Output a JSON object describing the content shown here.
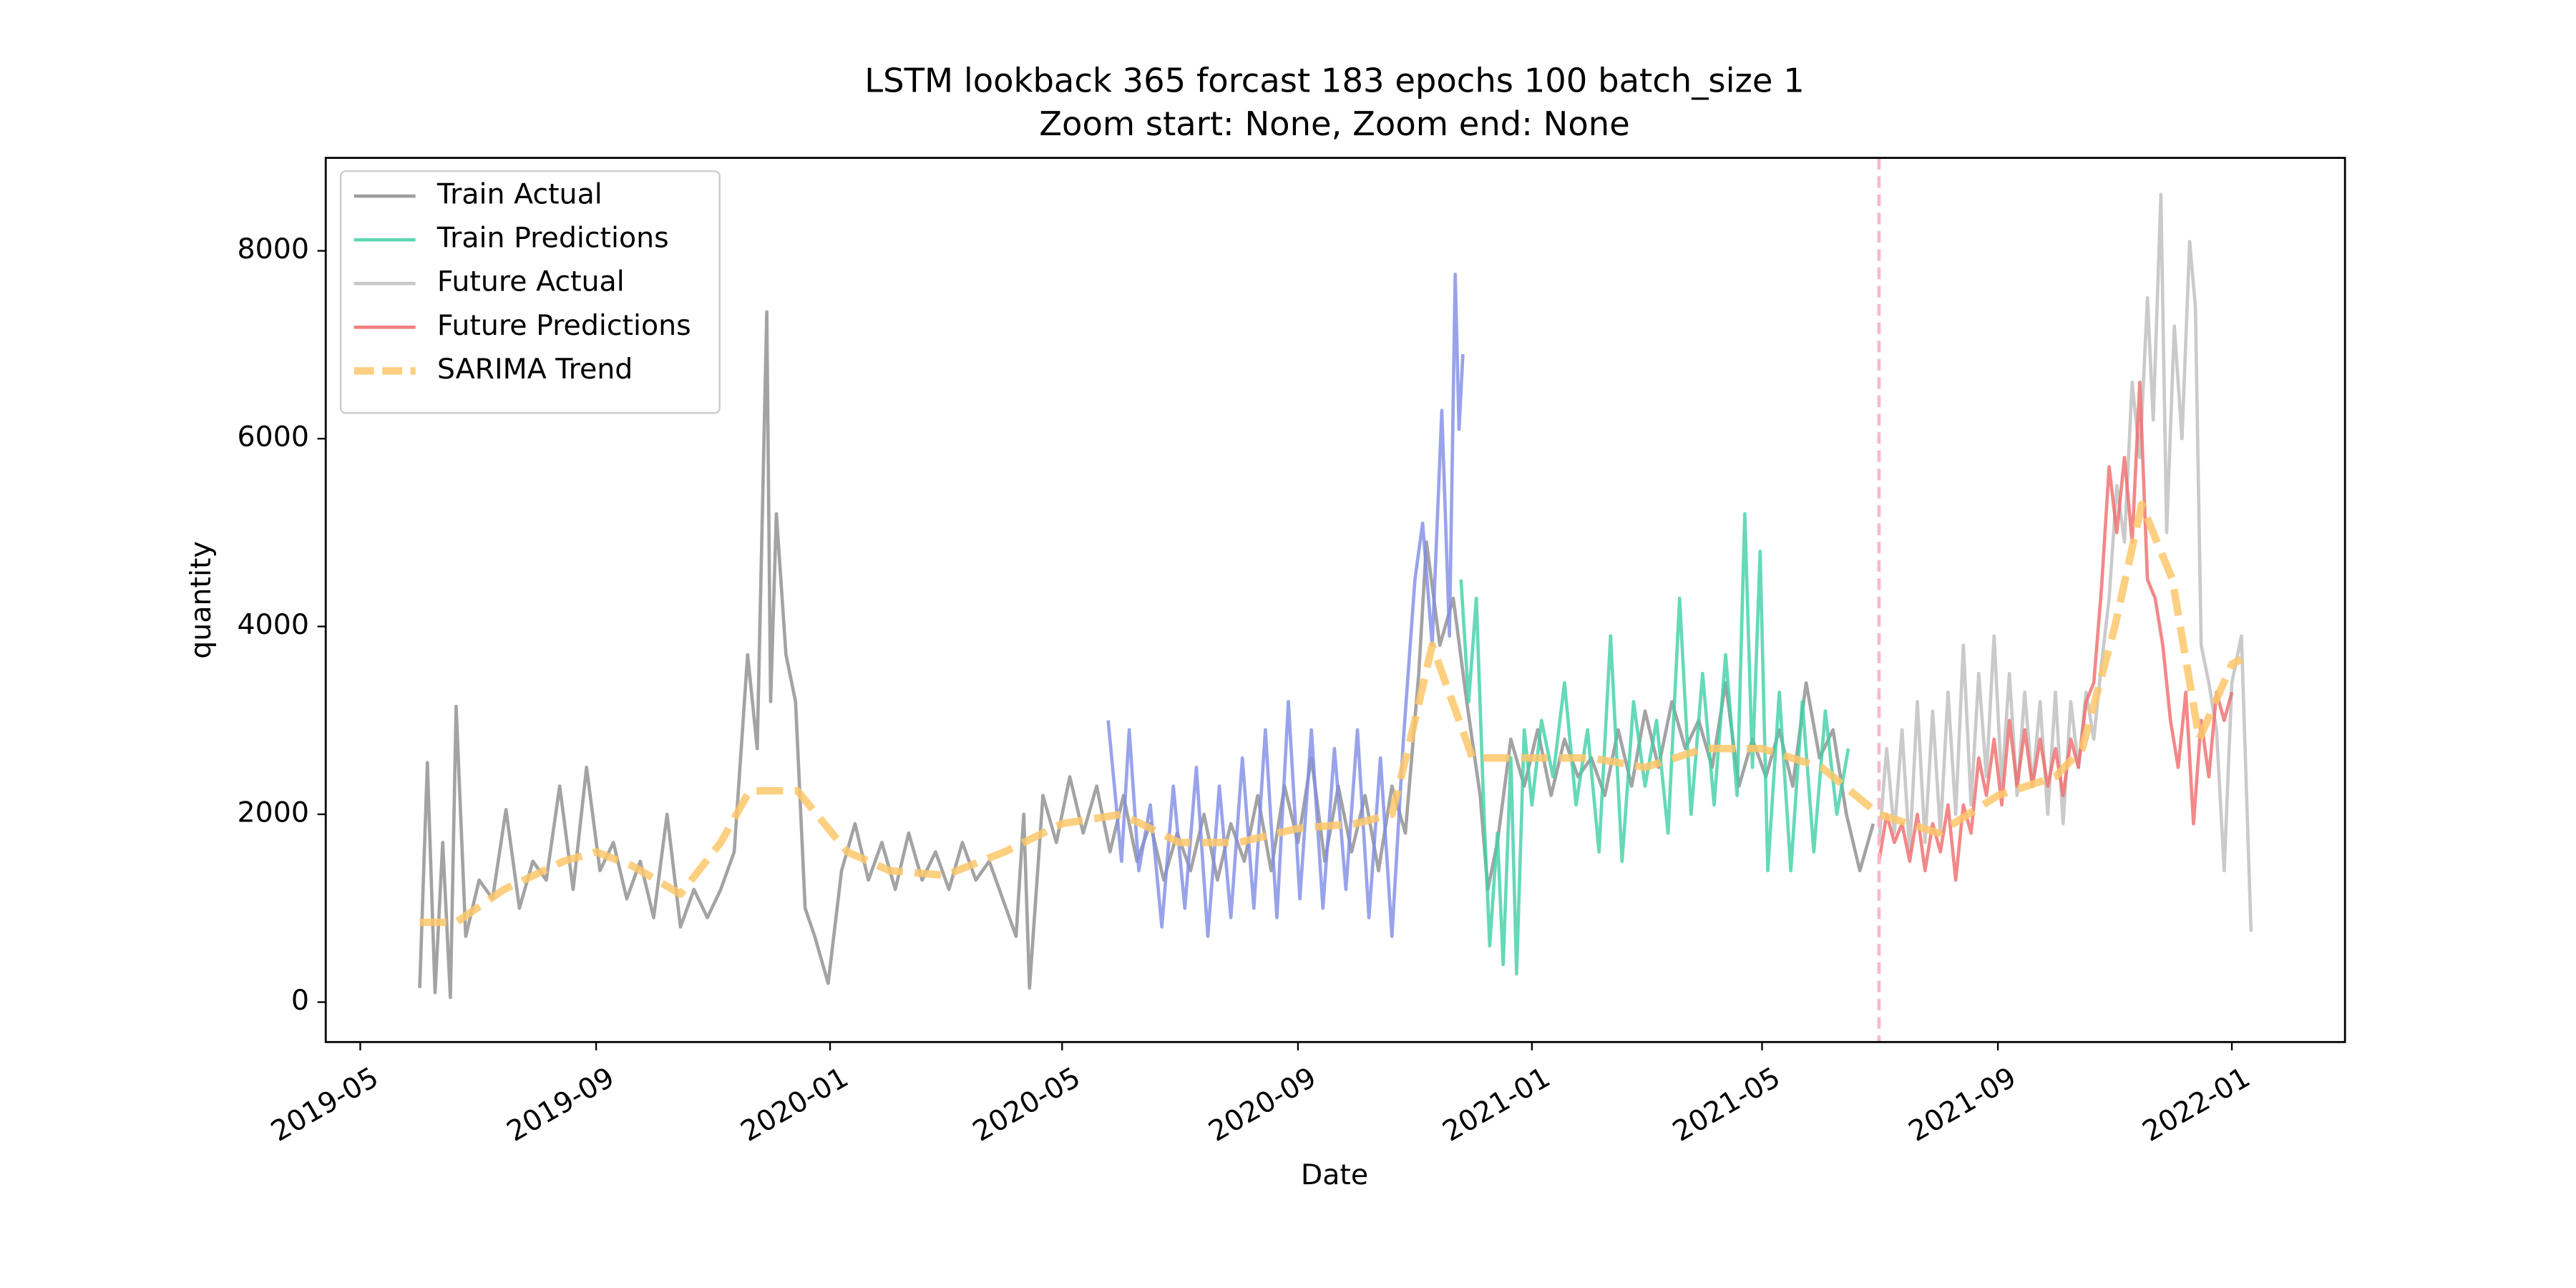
{
  "chart_data": {
    "type": "line",
    "title": "LSTM lookback 365 forcast 183 epochs 100 batch_size 1",
    "subtitle": "Zoom start: None, Zoom end: None",
    "xlabel": "Date",
    "ylabel": "quantity",
    "xlim": [
      "2019-04-13",
      "2022-03-01"
    ],
    "xticks": [
      {
        "value": "2019-05-01",
        "label": "2019-05"
      },
      {
        "value": "2019-09-01",
        "label": "2019-09"
      },
      {
        "value": "2020-01-01",
        "label": "2020-01"
      },
      {
        "value": "2020-05-01",
        "label": "2020-05"
      },
      {
        "value": "2020-09-01",
        "label": "2020-09"
      },
      {
        "value": "2021-01-01",
        "label": "2021-01"
      },
      {
        "value": "2021-05-01",
        "label": "2021-05"
      },
      {
        "value": "2021-09-01",
        "label": "2021-09"
      },
      {
        "value": "2022-01-01",
        "label": "2022-01"
      }
    ],
    "ylim": [
      -425,
      8990
    ],
    "yticks": [
      0,
      2000,
      4000,
      6000,
      8000
    ],
    "grid": false,
    "legend": "upper left",
    "vline": "2021-07-01",
    "vline_color": "#ffb6c8",
    "series": [
      {
        "name": "Train Actual",
        "color": "#8c8c8c",
        "dashed": false,
        "x": [
          "2019-06-01",
          "2019-06-05",
          "2019-06-09",
          "2019-06-13",
          "2019-06-17",
          "2019-06-20",
          "2019-06-25",
          "2019-07-02",
          "2019-07-09",
          "2019-07-16",
          "2019-07-23",
          "2019-07-30",
          "2019-08-06",
          "2019-08-13",
          "2019-08-20",
          "2019-08-27",
          "2019-09-03",
          "2019-09-10",
          "2019-09-17",
          "2019-09-24",
          "2019-10-01",
          "2019-10-08",
          "2019-10-15",
          "2019-10-22",
          "2019-10-29",
          "2019-11-05",
          "2019-11-12",
          "2019-11-19",
          "2019-11-24",
          "2019-11-29",
          "2019-12-01",
          "2019-12-04",
          "2019-12-09",
          "2019-12-14",
          "2019-12-19",
          "2019-12-24",
          "2019-12-31",
          "2020-01-07",
          "2020-01-14",
          "2020-01-21",
          "2020-01-28",
          "2020-02-04",
          "2020-02-11",
          "2020-02-18",
          "2020-02-25",
          "2020-03-03",
          "2020-03-10",
          "2020-03-17",
          "2020-03-24",
          "2020-03-31",
          "2020-04-07",
          "2020-04-11",
          "2020-04-14",
          "2020-04-21",
          "2020-04-28",
          "2020-05-05",
          "2020-05-12",
          "2020-05-19",
          "2020-05-26",
          "2020-06-02",
          "2020-06-09",
          "2020-06-16",
          "2020-06-23",
          "2020-06-30",
          "2020-07-07",
          "2020-07-14",
          "2020-07-21",
          "2020-07-28",
          "2020-08-04",
          "2020-08-11",
          "2020-08-18",
          "2020-08-25",
          "2020-09-01",
          "2020-09-08",
          "2020-09-15",
          "2020-09-22",
          "2020-09-29",
          "2020-10-06",
          "2020-10-13",
          "2020-10-20",
          "2020-10-27",
          "2020-11-03",
          "2020-11-07",
          "2020-11-14",
          "2020-11-21",
          "2020-11-28",
          "2020-12-05",
          "2020-12-09",
          "2020-12-14",
          "2020-12-21",
          "2020-12-28",
          "2021-01-04",
          "2021-01-11",
          "2021-01-18",
          "2021-01-25",
          "2021-02-01",
          "2021-02-08",
          "2021-02-15",
          "2021-02-22",
          "2021-03-01",
          "2021-03-08",
          "2021-03-15",
          "2021-03-22",
          "2021-03-29",
          "2021-04-05",
          "2021-04-12",
          "2021-04-19",
          "2021-04-26",
          "2021-05-03",
          "2021-05-10",
          "2021-05-17",
          "2021-05-24",
          "2021-05-31",
          "2021-06-07",
          "2021-06-14",
          "2021-06-21",
          "2021-06-28"
        ],
        "values": [
          150,
          2550,
          100,
          1700,
          50,
          3150,
          700,
          1300,
          1100,
          2050,
          1000,
          1500,
          1300,
          2300,
          1200,
          2500,
          1400,
          1700,
          1100,
          1500,
          900,
          2000,
          800,
          1200,
          900,
          1200,
          1600,
          3700,
          2700,
          7350,
          3200,
          5200,
          3700,
          3200,
          1000,
          700,
          200,
          1400,
          1900,
          1300,
          1700,
          1200,
          1800,
          1300,
          1600,
          1200,
          1700,
          1300,
          1500,
          1100,
          700,
          2000,
          150,
          2200,
          1700,
          2400,
          1800,
          2300,
          1600,
          2200,
          1500,
          1900,
          1300,
          1800,
          1400,
          2000,
          1300,
          1900,
          1500,
          2200,
          1400,
          2300,
          1700,
          2600,
          1500,
          2300,
          1600,
          2200,
          1400,
          2300,
          1800,
          3500,
          4900,
          3800,
          4300,
          3200,
          2200,
          1200,
          1700,
          2800,
          2300,
          2900,
          2200,
          2800,
          2400,
          2600,
          2200,
          2900,
          2300,
          3100,
          2500,
          3200,
          2700,
          3000,
          2500,
          3400,
          2300,
          2800,
          2400,
          2900,
          2300,
          3400,
          2600,
          2900,
          2000,
          1400,
          1900
        ]
      },
      {
        "color": "#7f8ce6",
        "dashed": false,
        "x": [
          "2020-05-25",
          "2020-06-01",
          "2020-06-05",
          "2020-06-10",
          "2020-06-16",
          "2020-06-22",
          "2020-06-28",
          "2020-07-04",
          "2020-07-10",
          "2020-07-16",
          "2020-07-22",
          "2020-07-28",
          "2020-08-03",
          "2020-08-09",
          "2020-08-15",
          "2020-08-21",
          "2020-08-27",
          "2020-09-02",
          "2020-09-08",
          "2020-09-14",
          "2020-09-20",
          "2020-09-26",
          "2020-10-02",
          "2020-10-08",
          "2020-10-14",
          "2020-10-20",
          "2020-10-26",
          "2020-11-01",
          "2020-11-05",
          "2020-11-10",
          "2020-11-15",
          "2020-11-19",
          "2020-11-22",
          "2020-11-24",
          "2020-11-26"
        ],
        "values": [
          3000,
          1500,
          2900,
          1400,
          2100,
          800,
          2300,
          1000,
          2500,
          700,
          2300,
          900,
          2600,
          1000,
          2900,
          900,
          3200,
          1100,
          2900,
          1000,
          2700,
          1200,
          2900,
          900,
          2600,
          700,
          2800,
          4500,
          5100,
          3800,
          6300,
          3900,
          7750,
          6100,
          6900
        ]
      },
      {
        "name": "Train Predictions",
        "color": "#3fd0a6",
        "dashed": false,
        "x": [
          "2020-11-25",
          "2020-11-29",
          "2020-12-03",
          "2020-12-07",
          "2020-12-10",
          "2020-12-14",
          "2020-12-17",
          "2020-12-21",
          "2020-12-24",
          "2020-12-28",
          "2021-01-01",
          "2021-01-06",
          "2021-01-12",
          "2021-01-18",
          "2021-01-24",
          "2021-01-30",
          "2021-02-05",
          "2021-02-11",
          "2021-02-17",
          "2021-02-23",
          "2021-03-01",
          "2021-03-07",
          "2021-03-13",
          "2021-03-19",
          "2021-03-25",
          "2021-03-31",
          "2021-04-06",
          "2021-04-12",
          "2021-04-18",
          "2021-04-22",
          "2021-04-26",
          "2021-04-30",
          "2021-05-04",
          "2021-05-10",
          "2021-05-16",
          "2021-05-22",
          "2021-05-28",
          "2021-06-03",
          "2021-06-09",
          "2021-06-15"
        ],
        "values": [
          4500,
          3200,
          4300,
          2000,
          600,
          1800,
          400,
          2600,
          300,
          2900,
          2100,
          3000,
          2400,
          3400,
          2100,
          2900,
          1600,
          3900,
          1500,
          3200,
          2300,
          3000,
          1800,
          4300,
          2000,
          3500,
          2100,
          3700,
          2200,
          5200,
          2500,
          4800,
          1400,
          3300,
          1400,
          3200,
          1600,
          3100,
          2000,
          2700
        ]
      },
      {
        "name": "Future Actual",
        "color": "#bdbdbd",
        "dashed": false,
        "x": [
          "2021-07-01",
          "2021-07-05",
          "2021-07-09",
          "2021-07-13",
          "2021-07-17",
          "2021-07-21",
          "2021-07-25",
          "2021-07-29",
          "2021-08-02",
          "2021-08-06",
          "2021-08-10",
          "2021-08-14",
          "2021-08-18",
          "2021-08-22",
          "2021-08-26",
          "2021-08-30",
          "2021-09-03",
          "2021-09-07",
          "2021-09-11",
          "2021-09-15",
          "2021-09-19",
          "2021-09-23",
          "2021-09-27",
          "2021-10-01",
          "2021-10-05",
          "2021-10-09",
          "2021-10-13",
          "2021-10-17",
          "2021-10-21",
          "2021-10-25",
          "2021-10-29",
          "2021-11-02",
          "2021-11-06",
          "2021-11-10",
          "2021-11-14",
          "2021-11-18",
          "2021-11-21",
          "2021-11-25",
          "2021-11-28",
          "2021-12-02",
          "2021-12-06",
          "2021-12-10",
          "2021-12-13",
          "2021-12-16",
          "2021-12-20",
          "2021-12-24",
          "2021-12-28",
          "2022-01-01",
          "2022-01-06",
          "2022-01-11"
        ],
        "values": [
          1700,
          2700,
          1800,
          2900,
          1600,
          3200,
          1700,
          3100,
          1800,
          3300,
          2000,
          3800,
          2100,
          3500,
          2400,
          3900,
          2300,
          3500,
          2200,
          3300,
          2300,
          3200,
          2000,
          3300,
          1900,
          3200,
          2500,
          3300,
          2800,
          3600,
          4300,
          5500,
          4900,
          6600,
          5800,
          7500,
          6200,
          8600,
          5000,
          7200,
          6000,
          8100,
          7400,
          3800,
          3400,
          2900,
          1400,
          3400,
          3900,
          750
        ]
      },
      {
        "name": "Future Predictions",
        "color": "#f06a6a",
        "dashed": false,
        "x": [
          "2021-07-01",
          "2021-07-05",
          "2021-07-09",
          "2021-07-13",
          "2021-07-17",
          "2021-07-21",
          "2021-07-25",
          "2021-07-29",
          "2021-08-02",
          "2021-08-06",
          "2021-08-10",
          "2021-08-14",
          "2021-08-18",
          "2021-08-22",
          "2021-08-26",
          "2021-08-30",
          "2021-09-03",
          "2021-09-07",
          "2021-09-11",
          "2021-09-15",
          "2021-09-19",
          "2021-09-23",
          "2021-09-27",
          "2021-10-01",
          "2021-10-05",
          "2021-10-09",
          "2021-10-13",
          "2021-10-17",
          "2021-10-21",
          "2021-10-25",
          "2021-10-29",
          "2021-11-02",
          "2021-11-06",
          "2021-11-10",
          "2021-11-14",
          "2021-11-18",
          "2021-11-22",
          "2021-11-26",
          "2021-11-30",
          "2021-12-04",
          "2021-12-08",
          "2021-12-12",
          "2021-12-16",
          "2021-12-20",
          "2021-12-24",
          "2021-12-28",
          "2022-01-01"
        ],
        "values": [
          1500,
          2000,
          1700,
          1900,
          1500,
          2000,
          1400,
          1900,
          1600,
          2100,
          1300,
          2100,
          1800,
          2600,
          2200,
          2800,
          2100,
          3000,
          2300,
          2900,
          2300,
          2800,
          2300,
          2700,
          2200,
          2800,
          2500,
          3200,
          3400,
          4400,
          5700,
          5000,
          5800,
          4900,
          6600,
          4500,
          4300,
          3800,
          3000,
          2500,
          3300,
          1900,
          3000,
          2400,
          3300,
          3000,
          3300
        ]
      },
      {
        "name": "SARIMA Trend",
        "color": "#fdc76a",
        "dashed": true,
        "x": [
          "2019-06-01",
          "2019-06-20",
          "2019-07-15",
          "2019-08-15",
          "2019-09-01",
          "2019-09-20",
          "2019-10-15",
          "2019-11-05",
          "2019-11-20",
          "2019-12-15",
          "2020-01-10",
          "2020-02-01",
          "2020-03-01",
          "2020-04-01",
          "2020-05-01",
          "2020-06-01",
          "2020-07-01",
          "2020-08-01",
          "2020-09-01",
          "2020-10-01",
          "2020-10-20",
          "2020-11-01",
          "2020-11-10",
          "2020-12-01",
          "2021-01-01",
          "2021-02-01",
          "2021-03-01",
          "2021-04-01",
          "2021-05-01",
          "2021-06-01",
          "2021-07-01",
          "2021-08-01",
          "2021-09-01",
          "2021-10-01",
          "2021-10-15",
          "2021-11-01",
          "2021-11-15",
          "2021-12-01",
          "2021-12-15",
          "2022-01-01",
          "2022-01-06"
        ],
        "values": [
          850,
          850,
          1200,
          1500,
          1600,
          1450,
          1150,
          1700,
          2250,
          2250,
          1600,
          1400,
          1350,
          1600,
          1900,
          2000,
          1700,
          1700,
          1850,
          1900,
          2000,
          3000,
          3800,
          2600,
          2600,
          2600,
          2500,
          2700,
          2700,
          2500,
          2000,
          1800,
          2200,
          2400,
          2700,
          4000,
          5300,
          4500,
          2800,
          3600,
          3650
        ]
      }
    ]
  }
}
